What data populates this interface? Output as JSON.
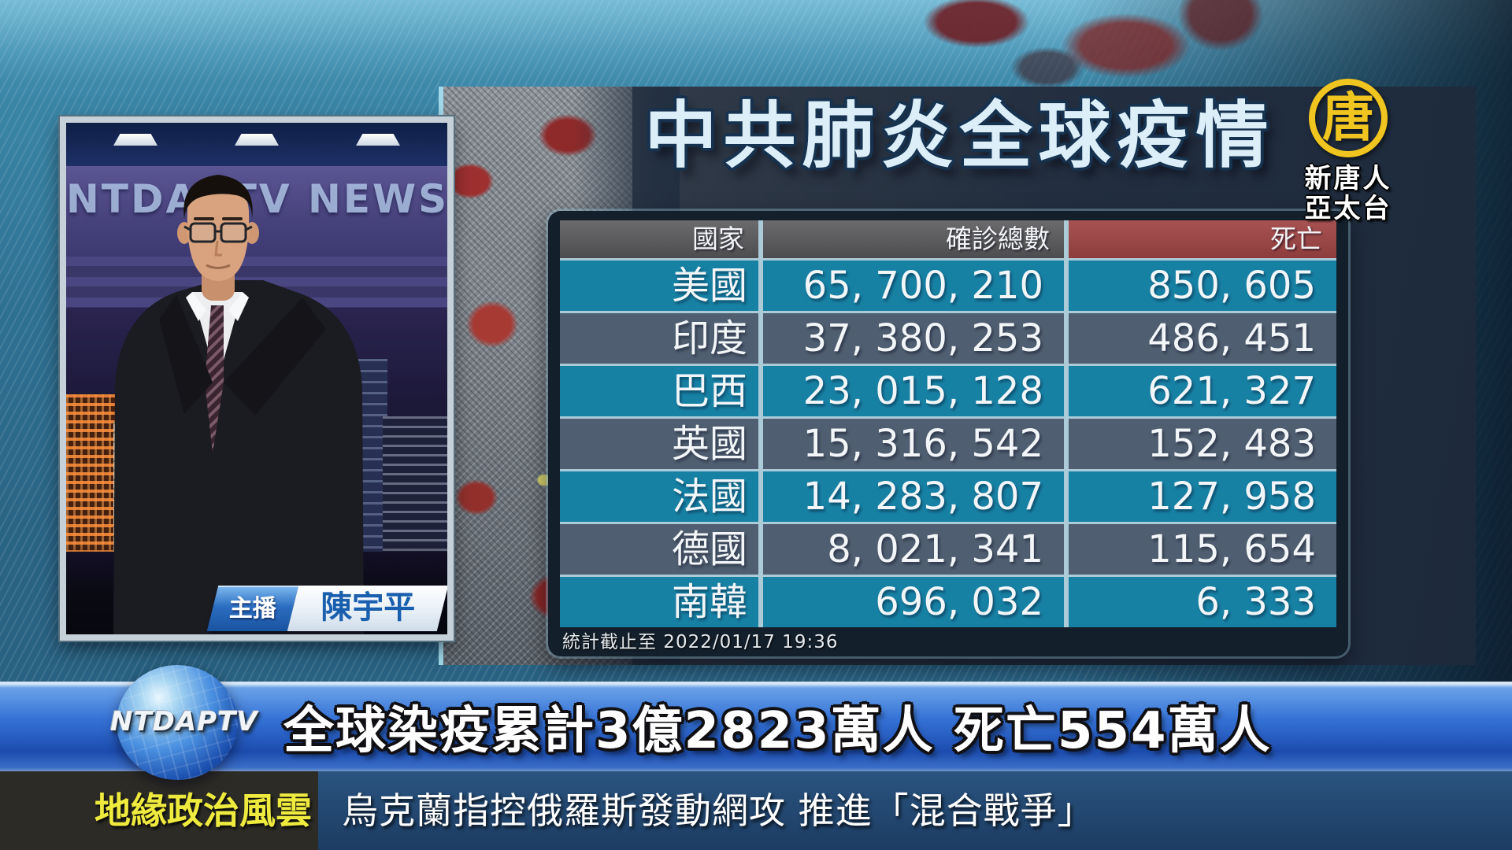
{
  "station": {
    "logo_symbol": "唐",
    "logo_name_line1": "新唐人",
    "logo_name_line2": "亞太台",
    "studio_watermark": "NTDAPTV NEWS",
    "globe_text": "NTDAPTV"
  },
  "anchor": {
    "role_label": "主播",
    "name": "陳宇平"
  },
  "graphic": {
    "title": "中共肺炎全球疫情",
    "table": {
      "columns": [
        "國家",
        "確診總數",
        "死亡"
      ],
      "rows": [
        {
          "country": "美國",
          "confirmed": "65, 700, 210",
          "deaths": "850, 605"
        },
        {
          "country": "印度",
          "confirmed": "37, 380, 253",
          "deaths": "486, 451"
        },
        {
          "country": "巴西",
          "confirmed": "23, 015, 128",
          "deaths": "621, 327"
        },
        {
          "country": "英國",
          "confirmed": "15, 316, 542",
          "deaths": "152, 483"
        },
        {
          "country": "法國",
          "confirmed": "14, 283, 807",
          "deaths": "127, 958"
        },
        {
          "country": "德國",
          "confirmed": "8, 021, 341",
          "deaths": "115, 654"
        },
        {
          "country": "南韓",
          "confirmed": "696, 032",
          "deaths": "6, 333"
        }
      ],
      "footnote": "統計截止至 2022/01/17 19:36"
    }
  },
  "chart_data": {
    "type": "table",
    "title": "中共肺炎全球疫情",
    "columns": [
      "國家",
      "確診總數",
      "死亡"
    ],
    "rows": [
      [
        "美國",
        65700210,
        850605
      ],
      [
        "印度",
        37380253,
        486451
      ],
      [
        "巴西",
        23015128,
        621327
      ],
      [
        "英國",
        15316542,
        152483
      ],
      [
        "法國",
        14283807,
        127958
      ],
      [
        "德國",
        8021341,
        115654
      ],
      [
        "南韓",
        696032,
        6333
      ]
    ],
    "footnote": "統計截止至 2022/01/17 19:36"
  },
  "banners": {
    "headline": "全球染疫累計3億2823萬人  死亡554萬人",
    "ticker_category": "地緣政治風雲",
    "ticker_text": "烏克蘭指控俄羅斯發動網攻 推進「混合戰爭」"
  },
  "colors": {
    "row_teal": "#1781a4",
    "row_gray": "#4f5e70",
    "header_gray": "#58585a",
    "header_red": "#9d4747",
    "banner_blue": "#2e6cd4",
    "ticker_navy": "#1c3c63",
    "ticker_yellow": "#eeea3e",
    "logo_gold": "#f1c51f"
  }
}
